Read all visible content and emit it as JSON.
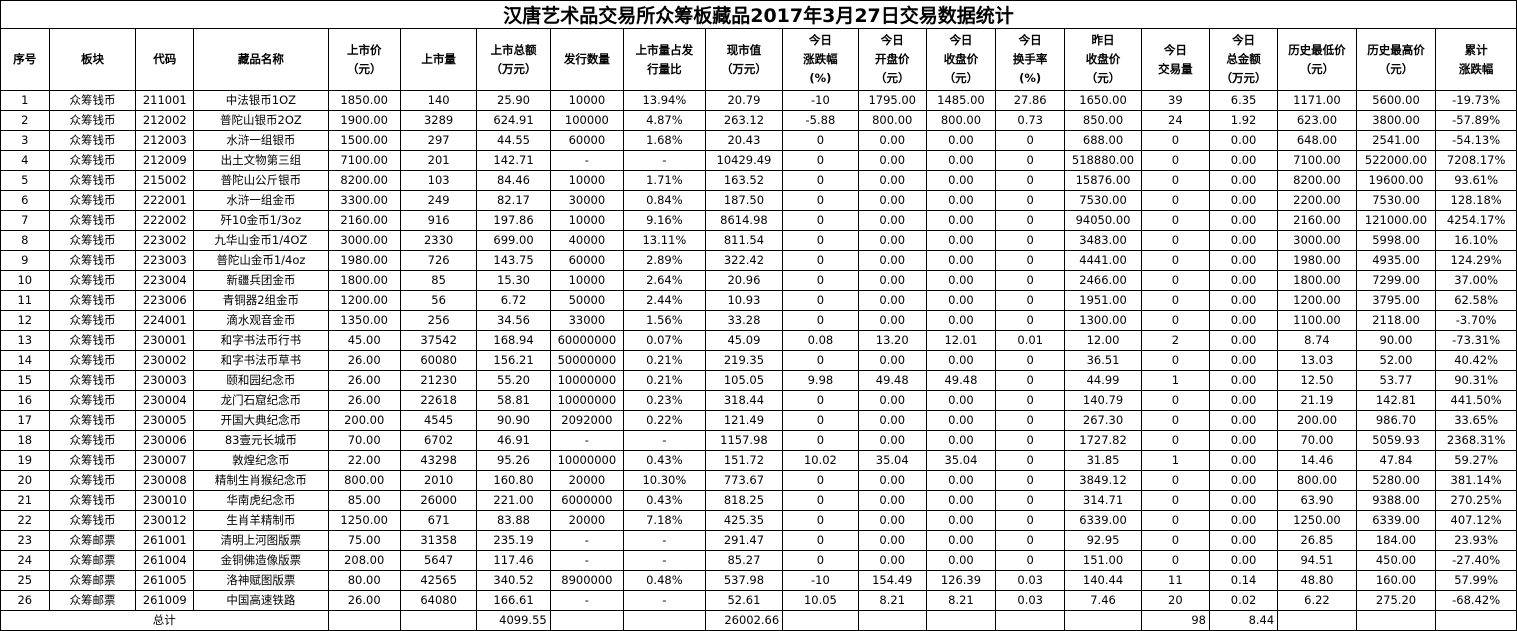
{
  "title": "汉唐艺术品交易所众筹板藏品2017年3月27日交易数据统计",
  "headers": [
    [
      "序号"
    ],
    [
      "板块"
    ],
    [
      "代码"
    ],
    [
      "藏品名称"
    ],
    [
      "上市价",
      "（元）"
    ],
    [
      "上市量"
    ],
    [
      "上市总额",
      "（万元）"
    ],
    [
      "发行数量"
    ],
    [
      "上市量占发",
      "行量比"
    ],
    [
      "现市值",
      "（万元）"
    ],
    [
      "今日",
      "涨跌幅",
      "(%)"
    ],
    [
      "今日",
      "开盘价",
      "（元）"
    ],
    [
      "今日",
      "收盘价",
      "（元）"
    ],
    [
      "今日",
      "换手率",
      "(%)"
    ],
    [
      "昨日",
      "收盘价",
      "（元）"
    ],
    [
      "今日",
      "交易量"
    ],
    [
      "今日",
      "总金额",
      "（万元）"
    ],
    [
      "历史最低价",
      "（元）"
    ],
    [
      "历史最高价",
      "（元）"
    ],
    [
      "累计",
      "涨跌幅"
    ]
  ],
  "rows": [
    [
      "1",
      "众筹钱币",
      "211001",
      "中法银币1OZ",
      "1850.00",
      "140",
      "25.90",
      "10000",
      "13.94%",
      "20.79",
      "-10",
      "1795.00",
      "1485.00",
      "27.86",
      "1650.00",
      "39",
      "6.35",
      "1171.00",
      "5600.00",
      "-19.73%"
    ],
    [
      "2",
      "众筹钱币",
      "212002",
      "普陀山银币2OZ",
      "1900.00",
      "3289",
      "624.91",
      "100000",
      "4.87%",
      "263.12",
      "-5.88",
      "800.00",
      "800.00",
      "0.73",
      "850.00",
      "24",
      "1.92",
      "623.00",
      "3800.00",
      "-57.89%"
    ],
    [
      "3",
      "众筹钱币",
      "212003",
      "水浒一组银币",
      "1500.00",
      "297",
      "44.55",
      "60000",
      "1.68%",
      "20.43",
      "0",
      "0.00",
      "0.00",
      "0",
      "688.00",
      "0",
      "0.00",
      "648.00",
      "2541.00",
      "-54.13%"
    ],
    [
      "4",
      "众筹钱币",
      "212009",
      "出土文物第三组",
      "7100.00",
      "201",
      "142.71",
      "-",
      "-",
      "10429.49",
      "0",
      "0.00",
      "0.00",
      "0",
      "518880.00",
      "0",
      "0.00",
      "7100.00",
      "522000.00",
      "7208.17%"
    ],
    [
      "5",
      "众筹钱币",
      "215002",
      "普陀山公斤银币",
      "8200.00",
      "103",
      "84.46",
      "10000",
      "1.71%",
      "163.52",
      "0",
      "0.00",
      "0.00",
      "0",
      "15876.00",
      "0",
      "0.00",
      "8200.00",
      "19600.00",
      "93.61%"
    ],
    [
      "6",
      "众筹钱币",
      "222001",
      "水浒一组金币",
      "3300.00",
      "249",
      "82.17",
      "30000",
      "0.84%",
      "187.50",
      "0",
      "0.00",
      "0.00",
      "0",
      "7530.00",
      "0",
      "0.00",
      "2200.00",
      "7530.00",
      "128.18%"
    ],
    [
      "7",
      "众筹钱币",
      "222002",
      "歼10金币1/3oz",
      "2160.00",
      "916",
      "197.86",
      "10000",
      "9.16%",
      "8614.98",
      "0",
      "0.00",
      "0.00",
      "0",
      "94050.00",
      "0",
      "0.00",
      "2160.00",
      "121000.00",
      "4254.17%"
    ],
    [
      "8",
      "众筹钱币",
      "223002",
      "九华山金币1/4OZ",
      "3000.00",
      "2330",
      "699.00",
      "40000",
      "13.11%",
      "811.54",
      "0",
      "0.00",
      "0.00",
      "0",
      "3483.00",
      "0",
      "0.00",
      "3000.00",
      "5998.00",
      "16.10%"
    ],
    [
      "9",
      "众筹钱币",
      "223003",
      "普陀山金币1/4oz",
      "1980.00",
      "726",
      "143.75",
      "60000",
      "2.89%",
      "322.42",
      "0",
      "0.00",
      "0.00",
      "0",
      "4441.00",
      "0",
      "0.00",
      "1980.00",
      "4935.00",
      "124.29%"
    ],
    [
      "10",
      "众筹钱币",
      "223004",
      "新疆兵团金币",
      "1800.00",
      "85",
      "15.30",
      "10000",
      "2.64%",
      "20.96",
      "0",
      "0.00",
      "0.00",
      "0",
      "2466.00",
      "0",
      "0.00",
      "1800.00",
      "7299.00",
      "37.00%"
    ],
    [
      "11",
      "众筹钱币",
      "223006",
      "青铜器2组金币",
      "1200.00",
      "56",
      "6.72",
      "50000",
      "2.44%",
      "10.93",
      "0",
      "0.00",
      "0.00",
      "0",
      "1951.00",
      "0",
      "0.00",
      "1200.00",
      "3795.00",
      "62.58%"
    ],
    [
      "12",
      "众筹钱币",
      "224001",
      "滴水观音金币",
      "1350.00",
      "256",
      "34.56",
      "33000",
      "1.56%",
      "33.28",
      "0",
      "0.00",
      "0.00",
      "0",
      "1300.00",
      "0",
      "0.00",
      "1100.00",
      "2118.00",
      "-3.70%"
    ],
    [
      "13",
      "众筹钱币",
      "230001",
      "和字书法币行书",
      "45.00",
      "37542",
      "168.94",
      "60000000",
      "0.07%",
      "45.09",
      "0.08",
      "13.20",
      "12.01",
      "0.01",
      "12.00",
      "2",
      "0.00",
      "8.74",
      "90.00",
      "-73.31%"
    ],
    [
      "14",
      "众筹钱币",
      "230002",
      "和字书法币草书",
      "26.00",
      "60080",
      "156.21",
      "50000000",
      "0.21%",
      "219.35",
      "0",
      "0.00",
      "0.00",
      "0",
      "36.51",
      "0",
      "0.00",
      "13.03",
      "52.00",
      "40.42%"
    ],
    [
      "15",
      "众筹钱币",
      "230003",
      "颐和园纪念币",
      "26.00",
      "21230",
      "55.20",
      "10000000",
      "0.21%",
      "105.05",
      "9.98",
      "49.48",
      "49.48",
      "0",
      "44.99",
      "1",
      "0.00",
      "12.50",
      "53.77",
      "90.31%"
    ],
    [
      "16",
      "众筹钱币",
      "230004",
      "龙门石窟纪念币",
      "26.00",
      "22618",
      "58.81",
      "10000000",
      "0.23%",
      "318.44",
      "0",
      "0.00",
      "0.00",
      "0",
      "140.79",
      "0",
      "0.00",
      "21.19",
      "142.81",
      "441.50%"
    ],
    [
      "17",
      "众筹钱币",
      "230005",
      "开国大典纪念币",
      "200.00",
      "4545",
      "90.90",
      "2092000",
      "0.22%",
      "121.49",
      "0",
      "0.00",
      "0.00",
      "0",
      "267.30",
      "0",
      "0.00",
      "200.00",
      "986.70",
      "33.65%"
    ],
    [
      "18",
      "众筹钱币",
      "230006",
      "83壹元长城币",
      "70.00",
      "6702",
      "46.91",
      "-",
      "-",
      "1157.98",
      "0",
      "0.00",
      "0.00",
      "0",
      "1727.82",
      "0",
      "0.00",
      "70.00",
      "5059.93",
      "2368.31%"
    ],
    [
      "19",
      "众筹钱币",
      "230007",
      "敦煌纪念币",
      "22.00",
      "43298",
      "95.26",
      "10000000",
      "0.43%",
      "151.72",
      "10.02",
      "35.04",
      "35.04",
      "0",
      "31.85",
      "1",
      "0.00",
      "14.46",
      "47.84",
      "59.27%"
    ],
    [
      "20",
      "众筹钱币",
      "230008",
      "精制生肖猴纪念币",
      "800.00",
      "2010",
      "160.80",
      "20000",
      "10.30%",
      "773.67",
      "0",
      "0.00",
      "0.00",
      "0",
      "3849.12",
      "0",
      "0.00",
      "800.00",
      "5280.00",
      "381.14%"
    ],
    [
      "21",
      "众筹钱币",
      "230010",
      "华南虎纪念币",
      "85.00",
      "26000",
      "221.00",
      "6000000",
      "0.43%",
      "818.25",
      "0",
      "0.00",
      "0.00",
      "0",
      "314.71",
      "0",
      "0.00",
      "63.90",
      "9388.00",
      "270.25%"
    ],
    [
      "22",
      "众筹钱币",
      "230012",
      "生肖羊精制币",
      "1250.00",
      "671",
      "83.88",
      "20000",
      "7.18%",
      "425.35",
      "0",
      "0.00",
      "0.00",
      "0",
      "6339.00",
      "0",
      "0.00",
      "1250.00",
      "6339.00",
      "407.12%"
    ],
    [
      "23",
      "众筹邮票",
      "261001",
      "清明上河图版票",
      "75.00",
      "31358",
      "235.19",
      "-",
      "-",
      "291.47",
      "0",
      "0.00",
      "0.00",
      "0",
      "92.95",
      "0",
      "0.00",
      "26.85",
      "184.00",
      "23.93%"
    ],
    [
      "24",
      "众筹邮票",
      "261004",
      "金铜佛造像版票",
      "208.00",
      "5647",
      "117.46",
      "-",
      "-",
      "85.27",
      "0",
      "0.00",
      "0.00",
      "0",
      "151.00",
      "0",
      "0.00",
      "94.51",
      "450.00",
      "-27.40%"
    ],
    [
      "25",
      "众筹邮票",
      "261005",
      "洛神赋图版票",
      "80.00",
      "42565",
      "340.52",
      "8900000",
      "0.48%",
      "537.98",
      "-10",
      "154.49",
      "126.39",
      "0.03",
      "140.44",
      "11",
      "0.14",
      "48.80",
      "160.00",
      "57.99%"
    ],
    [
      "26",
      "众筹邮票",
      "261009",
      "中国高速铁路",
      "26.00",
      "64080",
      "166.61",
      "-",
      "-",
      "52.61",
      "10.05",
      "8.21",
      "8.21",
      "0.03",
      "7.46",
      "20",
      "0.02",
      "6.22",
      "275.20",
      "-68.42%"
    ]
  ],
  "total": {
    "label": "总计",
    "listing_total": "4099.55",
    "market_value": "26002.66",
    "volume": "98",
    "amount": "8.44"
  }
}
